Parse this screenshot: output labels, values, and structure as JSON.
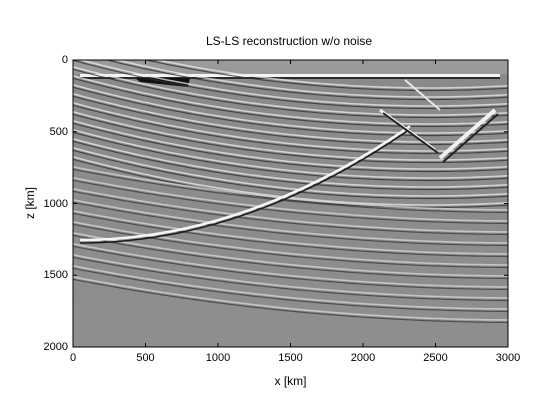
{
  "figure": {
    "title": "LS-LS reconstruction w/o noise",
    "xlabel": "x [km]",
    "ylabel": "z [km]",
    "x_ticks": [
      "0",
      "500",
      "1000",
      "1500",
      "2000",
      "2500",
      "3000"
    ],
    "y_ticks": [
      "0",
      "500",
      "1000",
      "1500",
      "2000"
    ],
    "x_range": [
      0,
      3000
    ],
    "z_range": [
      0,
      2000
    ],
    "colormap": "gray",
    "background": "#ffffff"
  }
}
